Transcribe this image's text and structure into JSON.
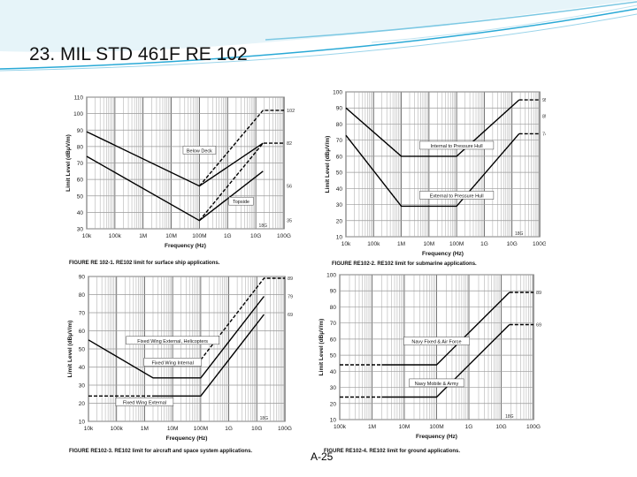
{
  "slide": {
    "title": "23. MIL STD 461F RE 102",
    "page_number": "A-25",
    "accent_color": "#29a9d6"
  },
  "chart_data": [
    {
      "type": "line",
      "title": "",
      "xlabel": "Frequency (Hz)",
      "ylabel": "Limit Level (dBμV/m)",
      "x_scale": "log",
      "xlim": [
        10000,
        100000000000
      ],
      "ylim": [
        30,
        110
      ],
      "y_ticks": [
        30,
        40,
        50,
        60,
        70,
        80,
        90,
        100,
        110
      ],
      "x_tick_labels": [
        "10k",
        "100k",
        "1M",
        "10M",
        "100M",
        "1G",
        "10G",
        "100G"
      ],
      "grid": true,
      "caption": "FIGURE RE 102-1. RE102 limit for surface ship applications.",
      "series": [
        {
          "name": "Deck",
          "style": "solid",
          "x": [
            10000,
            100000000,
            18000000000
          ],
          "y": [
            89,
            56,
            82
          ]
        },
        {
          "name": "",
          "style": "solid",
          "x": [
            10000,
            100000000,
            18000000000
          ],
          "y": [
            74,
            35,
            65
          ]
        },
        {
          "name": "",
          "style": "dashed",
          "x": [
            100000000,
            18000000000,
            100000000000
          ],
          "y": [
            56,
            102,
            102
          ]
        },
        {
          "name": "",
          "style": "dashed",
          "x": [
            100000000,
            18000000000,
            100000000000
          ],
          "y": [
            35,
            82,
            82
          ]
        }
      ],
      "annotations": [
        {
          "text": "Below Deck",
          "x": 100000000,
          "y": 77
        },
        {
          "text": "Topside",
          "x": 3000000000,
          "y": 46
        }
      ],
      "right_labels": [
        "102",
        "82",
        "56",
        "35"
      ],
      "x_marker": "18G"
    },
    {
      "type": "line",
      "title": "",
      "xlabel": "Frequency (Hz)",
      "ylabel": "Limit Level (dBμV/m)",
      "x_scale": "log",
      "xlim": [
        10000,
        100000000000
      ],
      "ylim": [
        10,
        100
      ],
      "y_ticks": [
        10,
        20,
        30,
        40,
        50,
        60,
        70,
        80,
        90,
        100
      ],
      "x_tick_labels": [
        "10k",
        "100k",
        "1M",
        "10M",
        "100M",
        "1G",
        "10G",
        "100G"
      ],
      "grid": true,
      "caption": "FIGURE RE102-2. RE102 limit for submarine applications.",
      "series": [
        {
          "name": "Internal to Pressure Hull",
          "style": "solid",
          "x": [
            10000,
            1000000,
            100000000,
            18000000000
          ],
          "y": [
            90,
            60,
            60,
            95
          ]
        },
        {
          "name": "External to Pressure Hull",
          "style": "solid",
          "x": [
            10000,
            1000000,
            100000000,
            18000000000
          ],
          "y": [
            73,
            29,
            29,
            74
          ]
        },
        {
          "name": "",
          "style": "dashed",
          "x": [
            18000000000,
            100000000000
          ],
          "y": [
            95,
            95
          ]
        },
        {
          "name": "",
          "style": "dashed",
          "x": [
            18000000000,
            100000000000
          ],
          "y": [
            74,
            74
          ]
        }
      ],
      "annotations": [
        {
          "text": "Internal to Pressure Hull",
          "x": 100000000,
          "y": 66
        },
        {
          "text": "External to Pressure Hull",
          "x": 100000000,
          "y": 35
        }
      ],
      "right_labels": [
        "95",
        "85",
        "74"
      ],
      "x_marker": "18G"
    },
    {
      "type": "line",
      "title": "",
      "xlabel": "Frequency (Hz)",
      "ylabel": "Limit Level (dBμV/m)",
      "x_scale": "log",
      "xlim": [
        10000,
        100000000000
      ],
      "ylim": [
        10,
        90
      ],
      "y_ticks": [
        10,
        20,
        30,
        40,
        50,
        60,
        70,
        80,
        90
      ],
      "x_tick_labels": [
        "10k",
        "100k",
        "1M",
        "10M",
        "100M",
        "1G",
        "10G",
        "100G"
      ],
      "grid": true,
      "caption": "FIGURE RE102-3. RE102 limit for aircraft and space system applications.",
      "series": [
        {
          "name": "Fixed Wing External",
          "style": "solid",
          "x": [
            10000,
            2000000,
            100000000,
            18000000000
          ],
          "y": [
            55,
            34,
            34,
            79
          ]
        },
        {
          "name": "Fixed Wing Internal",
          "style": "solid",
          "x": [
            2000000,
            100000000,
            18000000000
          ],
          "y": [
            24,
            24,
            69
          ]
        },
        {
          "name": "",
          "style": "dashed",
          "x": [
            100000000,
            18000000000,
            100000000000
          ],
          "y": [
            44,
            89,
            89
          ]
        },
        {
          "name": "",
          "style": "dashed",
          "x": [
            10000,
            2000000
          ],
          "y": [
            24,
            24
          ]
        }
      ],
      "annotations": [
        {
          "text": "Fixed Wing External, Helicopters",
          "x": 10000000,
          "y": 54
        },
        {
          "text": "Fixed Wing Internal",
          "x": 10000000,
          "y": 42
        },
        {
          "text": "Fixed Wing External",
          "x": 1000000,
          "y": 20
        }
      ],
      "right_labels": [
        "89",
        "79",
        "69"
      ],
      "x_marker": "18G"
    },
    {
      "type": "line",
      "title": "",
      "xlabel": "Frequency (Hz)",
      "ylabel": "Limit Level (dBμV/m)",
      "x_scale": "log",
      "xlim": [
        100000,
        100000000000
      ],
      "ylim": [
        10,
        100
      ],
      "y_ticks": [
        10,
        20,
        30,
        40,
        50,
        60,
        70,
        80,
        90,
        100
      ],
      "x_tick_labels": [
        "100k",
        "1M",
        "10M",
        "100M",
        "1G",
        "10G",
        "100G"
      ],
      "grid": true,
      "caption": "FIGURE RE102-4. RE102 limit for ground applications.",
      "series": [
        {
          "name": "Navy Fixed & Air Force",
          "style": "solid",
          "x": [
            2000000,
            100000000,
            18000000000
          ],
          "y": [
            44,
            44,
            89
          ]
        },
        {
          "name": "Navy Mobile & Army",
          "style": "solid",
          "x": [
            2000000,
            100000000,
            18000000000
          ],
          "y": [
            24,
            24,
            69
          ]
        },
        {
          "name": "",
          "style": "dashed",
          "x": [
            18000000000,
            100000000000
          ],
          "y": [
            89,
            89
          ]
        },
        {
          "name": "",
          "style": "dashed",
          "x": [
            18000000000,
            100000000000
          ],
          "y": [
            69,
            69
          ]
        },
        {
          "name": "",
          "style": "dashed",
          "x": [
            100000,
            2000000
          ],
          "y": [
            44,
            44
          ]
        },
        {
          "name": "",
          "style": "dashed",
          "x": [
            100000,
            2000000
          ],
          "y": [
            24,
            24
          ]
        }
      ],
      "annotations": [
        {
          "text": "Navy Fixed & Air Force",
          "x": 100000000,
          "y": 58
        },
        {
          "text": "Navy Mobile & Army",
          "x": 100000000,
          "y": 32
        }
      ],
      "right_labels": [
        "89",
        "69"
      ],
      "x_marker": "18G"
    }
  ]
}
